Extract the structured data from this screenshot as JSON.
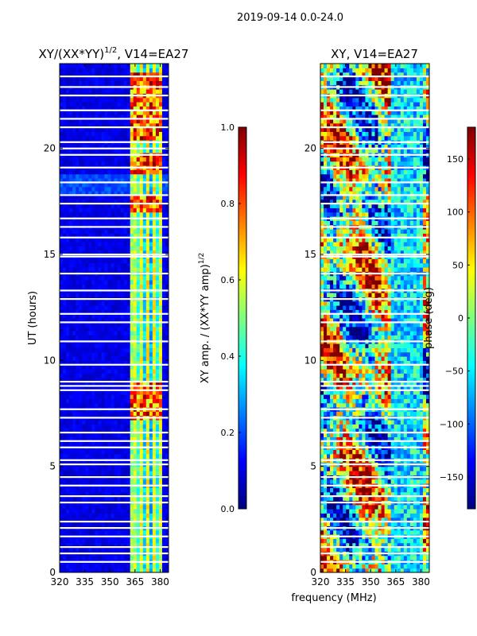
{
  "figure": {
    "suptitle": "2019-09-14 0.0-24.0",
    "common_xlabel": "frequency (MHz)"
  },
  "colormap": [
    "#00007f",
    "#0000ff",
    "#007fff",
    "#00ffff",
    "#7fff7f",
    "#ffff00",
    "#ff7f00",
    "#ff0000",
    "#7f0000"
  ],
  "chart_data": [
    {
      "type": "heatmap",
      "title_main": "XY/(XX*YY)",
      "title_sup": "1/2",
      "title_tail": ", V14=EA27",
      "xlabel": "",
      "ylabel": "UT (hours)",
      "xlim": [
        320,
        385
      ],
      "ylim": [
        0,
        24
      ],
      "xticks": [
        320,
        335,
        350,
        365,
        380
      ],
      "yticks": [
        0,
        5,
        10,
        15,
        20
      ],
      "colorbar": {
        "label_main": "XY amp. / (XX*YY amp)",
        "label_sup": "1/2",
        "range": [
          0.0,
          1.0
        ],
        "ticks": [
          "0.0",
          "0.2",
          "0.4",
          "0.6",
          "0.8",
          "1.0"
        ]
      },
      "bright_band_mhz": [
        362,
        382
      ],
      "strong_rfi_hours": [
        [
          7.2,
          8.9
        ],
        [
          17.1,
          17.7
        ],
        [
          18.8,
          19.8
        ],
        [
          20.5,
          23.5
        ]
      ],
      "flagged_hours": [
        0.5,
        0.9,
        1.2,
        1.7,
        2.1,
        2.4,
        3.3,
        3.6,
        4.1,
        4.5,
        5.1,
        5.3,
        5.9,
        6.2,
        6.6,
        7.3,
        7.7,
        8.6,
        8.8,
        9.0,
        9.8,
        10.9,
        11.8,
        12.2,
        12.9,
        13.3,
        14.1,
        14.9,
        15.0,
        15.8,
        16.3,
        16.7,
        17.4,
        17.8,
        18.4,
        19.1,
        19.7,
        20.0,
        20.3,
        21.0,
        21.4,
        21.8,
        22.5,
        22.9,
        23.4
      ]
    },
    {
      "type": "heatmap",
      "title_main": "XY, V14=EA27",
      "title_sup": "",
      "title_tail": "",
      "xlabel": "",
      "ylabel": "",
      "xlim": [
        320,
        385
      ],
      "ylim": [
        0,
        24
      ],
      "xticks": [
        320,
        335,
        350,
        365,
        380
      ],
      "yticks": [
        0,
        5,
        10,
        15,
        20
      ],
      "colorbar": {
        "label_main": "phase (deg)",
        "label_sup": "",
        "range": [
          -180,
          180
        ],
        "ticks": [
          "−150",
          "−100",
          "−50",
          "0",
          "50",
          "100",
          "150"
        ]
      },
      "bright_band_mhz": [
        362,
        382
      ],
      "strong_rfi_hours": [],
      "flagged_hours": [
        0.5,
        0.9,
        1.2,
        1.7,
        2.1,
        2.4,
        3.3,
        3.6,
        4.1,
        4.5,
        5.1,
        5.3,
        5.9,
        6.2,
        6.6,
        7.3,
        7.7,
        8.6,
        8.8,
        9.0,
        9.8,
        10.9,
        11.8,
        12.2,
        12.9,
        13.3,
        14.1,
        14.9,
        15.0,
        15.8,
        16.3,
        16.7,
        17.4,
        17.8,
        18.4,
        19.1,
        19.7,
        20.0,
        20.3,
        21.0,
        21.4,
        21.8,
        22.5,
        22.9,
        23.4
      ]
    }
  ]
}
